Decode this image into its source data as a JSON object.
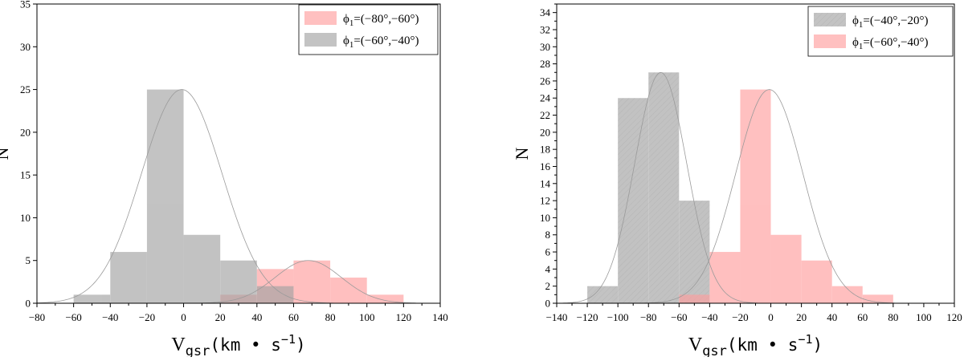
{
  "chart_data": [
    {
      "type": "bar",
      "xlabel": "V",
      "xlabel_sub": "gsr",
      "xlabel_unit": "(km • s",
      "xlabel_unit_sup": "−1",
      "xlabel_unit_close": ")",
      "ylabel": "N",
      "xlim": [
        -80,
        140
      ],
      "ylim": [
        0,
        35
      ],
      "xticks": [
        -80,
        -60,
        -40,
        -20,
        0,
        20,
        40,
        60,
        80,
        100,
        120,
        140
      ],
      "yticks": [
        0,
        5,
        10,
        15,
        20,
        25,
        30,
        35
      ],
      "legend_position": "top-right",
      "series": [
        {
          "name": "ϕ1=(−80°,−60°)",
          "name_base": "ϕ",
          "name_sub": "1",
          "name_rest": "=(−80°,−60°)",
          "color": "#ff9e9e",
          "opacity": 0.65,
          "bin_edges": [
            20,
            40,
            60,
            80,
            100,
            120
          ],
          "counts": [
            1,
            4,
            5,
            3,
            1
          ],
          "gaussian": {
            "mu": 68,
            "sigma": 18,
            "amp": 5
          }
        },
        {
          "name": "ϕ1=(−60°,−40°)",
          "name_base": "ϕ",
          "name_sub": "1",
          "name_rest": "=(−60°,−40°)",
          "color": "#a3a3a3",
          "opacity": 0.65,
          "bin_edges": [
            -60,
            -40,
            -20,
            0,
            20,
            40,
            60,
            80
          ],
          "counts": [
            1,
            6,
            25,
            8,
            5,
            2,
            0
          ],
          "gaussian": {
            "mu": -1,
            "sigma": 22,
            "amp": 25
          }
        }
      ]
    },
    {
      "type": "bar",
      "xlabel": "V",
      "xlabel_sub": "gsr",
      "xlabel_unit": "(km • s",
      "xlabel_unit_sup": "−1",
      "xlabel_unit_close": ")",
      "ylabel": "N",
      "xlim": [
        -140,
        120
      ],
      "ylim": [
        0,
        35
      ],
      "xticks": [
        -140,
        -120,
        -100,
        -80,
        -60,
        -40,
        -20,
        0,
        20,
        40,
        60,
        80,
        100,
        120
      ],
      "yticks": [
        0,
        2,
        4,
        6,
        8,
        10,
        12,
        14,
        16,
        18,
        20,
        22,
        24,
        26,
        28,
        30,
        32,
        34
      ],
      "legend_position": "top-right",
      "series": [
        {
          "name": "ϕ1=(−40°,−20°)",
          "name_base": "ϕ",
          "name_sub": "1",
          "name_rest": "=(−40°,−20°)",
          "color": "#a3a3a3",
          "opacity": 0.65,
          "hatched": true,
          "bin_edges": [
            -120,
            -100,
            -80,
            -60,
            -40
          ],
          "counts": [
            2,
            24,
            27,
            12
          ],
          "gaussian": {
            "mu": -72,
            "sigma": 17,
            "amp": 27
          }
        },
        {
          "name": "ϕ1=(−60°,−40°)",
          "name_base": "ϕ",
          "name_sub": "1",
          "name_rest": "=(−60°,−40°)",
          "color": "#ff9e9e",
          "opacity": 0.65,
          "bin_edges": [
            -60,
            -40,
            -20,
            0,
            20,
            40,
            60,
            80
          ],
          "counts": [
            1,
            6,
            25,
            8,
            5,
            2,
            1
          ],
          "gaussian": {
            "mu": -1,
            "sigma": 22,
            "amp": 25
          }
        }
      ]
    }
  ]
}
